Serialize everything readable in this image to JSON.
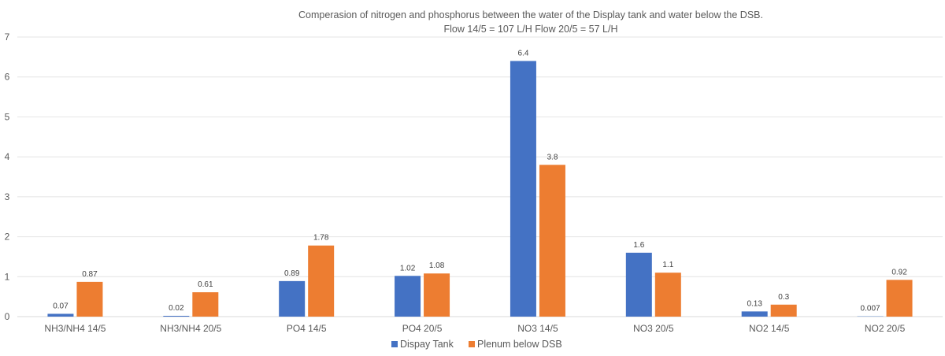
{
  "chart_data": {
    "type": "bar",
    "title": "Comperasion of nitrogen and phosphorus between the water of the Display tank and water below the DSB.",
    "subtitle": "Flow 14/5 = 107 L/H  Flow 20/5 = 57 L/H",
    "xlabel": "",
    "ylabel": "",
    "ylim": [
      0,
      7
    ],
    "yticks": [
      0,
      1,
      2,
      3,
      4,
      5,
      6,
      7
    ],
    "grid": true,
    "legend_position": "bottom",
    "categories": [
      "NH3/NH4 14/5",
      "NH3/NH4 20/5",
      "PO4 14/5",
      "PO4 20/5",
      "NO3 14/5",
      "NO3 20/5",
      "NO2 14/5",
      "NO2 20/5"
    ],
    "series": [
      {
        "name": "Dispay Tank",
        "color": "#4472C4",
        "values": [
          0.07,
          0.02,
          0.89,
          1.02,
          6.4,
          1.6,
          0.13,
          0.007
        ],
        "labels": [
          "0.07",
          "0.02",
          "0.89",
          "1.02",
          "6.4",
          "1.6",
          "0.13",
          "0.007"
        ]
      },
      {
        "name": "Plenum below DSB",
        "color": "#ED7D31",
        "values": [
          0.87,
          0.61,
          1.78,
          1.08,
          3.8,
          1.1,
          0.3,
          0.92
        ],
        "labels": [
          "0.87",
          "0.61",
          "1.78",
          "1.08",
          "3.8",
          "1.1",
          "0.3",
          "0.92"
        ]
      }
    ]
  }
}
